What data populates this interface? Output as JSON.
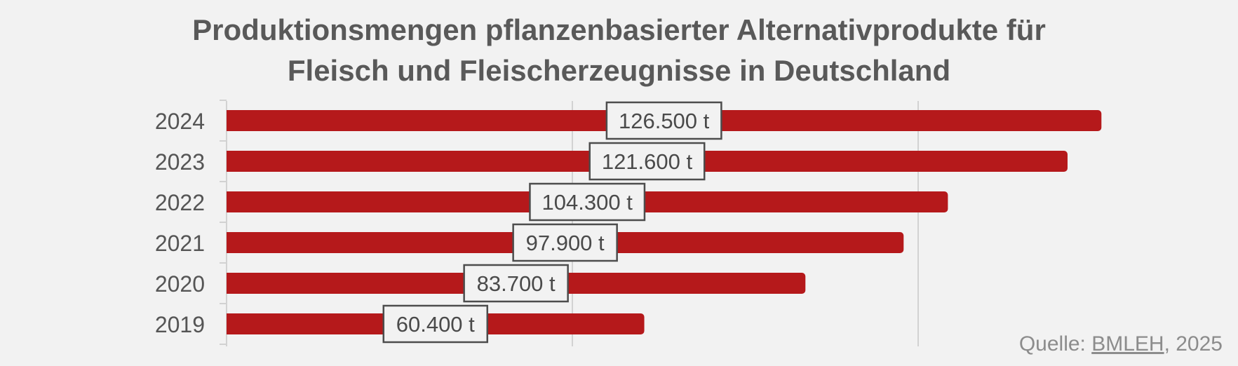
{
  "title_line1": "Produktionsmengen pflanzenbasierter Alternativprodukte für",
  "title_line2": "Fleisch und Fleischerzeugnisse in Deutschland",
  "source": {
    "prefix": "Quelle: ",
    "link": "BMLEH",
    "suffix": ", 2025"
  },
  "colors": {
    "bar": "#b5191b",
    "background": "#f2f2f2",
    "grid": "#d2d2d2",
    "text": "#555555"
  },
  "chart_data": {
    "type": "bar",
    "orientation": "horizontal",
    "categories": [
      "2024",
      "2023",
      "2022",
      "2021",
      "2020",
      "2019"
    ],
    "values": [
      126500,
      121600,
      104300,
      97900,
      83700,
      60400
    ],
    "data_labels": [
      "126.500 t",
      "121.600 t",
      "104.300 t",
      "97.900 t",
      "83.700 t",
      "60.400 t"
    ],
    "unit": "t",
    "xlim": [
      0,
      127000
    ],
    "gridlines": [
      50000,
      100000
    ],
    "grid": true,
    "title": "Produktionsmengen pflanzenbasierter Alternativprodukte für Fleisch und Fleischerzeugnisse in Deutschland",
    "xlabel": "",
    "ylabel": ""
  }
}
